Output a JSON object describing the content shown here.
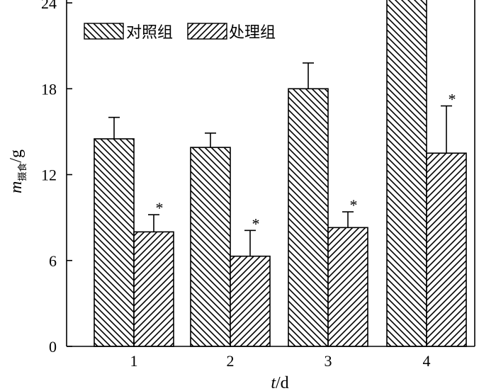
{
  "chart_data": {
    "type": "bar",
    "categories": [
      "1",
      "2",
      "3",
      "4"
    ],
    "series": [
      {
        "name": "对照组",
        "values": [
          14.5,
          13.9,
          18.0,
          24.9
        ],
        "errors": [
          1.5,
          1.0,
          1.8,
          2.0
        ],
        "significant": [
          false,
          false,
          false,
          false
        ],
        "pattern": "backslash"
      },
      {
        "name": "处理组",
        "values": [
          8.0,
          6.3,
          8.3,
          13.5
        ],
        "errors": [
          1.2,
          1.8,
          1.1,
          3.3
        ],
        "significant": [
          true,
          true,
          true,
          true
        ],
        "pattern": "slash"
      }
    ],
    "yticks": [
      "0",
      "6",
      "12",
      "18",
      "24"
    ],
    "ylim": [
      0,
      24.2
    ],
    "xlabel": {
      "main": "t",
      "unit": "/d"
    },
    "ylabel": {
      "main": "m",
      "sub": "摄食",
      "unit": "/g"
    },
    "significance_marker": "*",
    "legend_position": "top-left",
    "grid": false
  }
}
